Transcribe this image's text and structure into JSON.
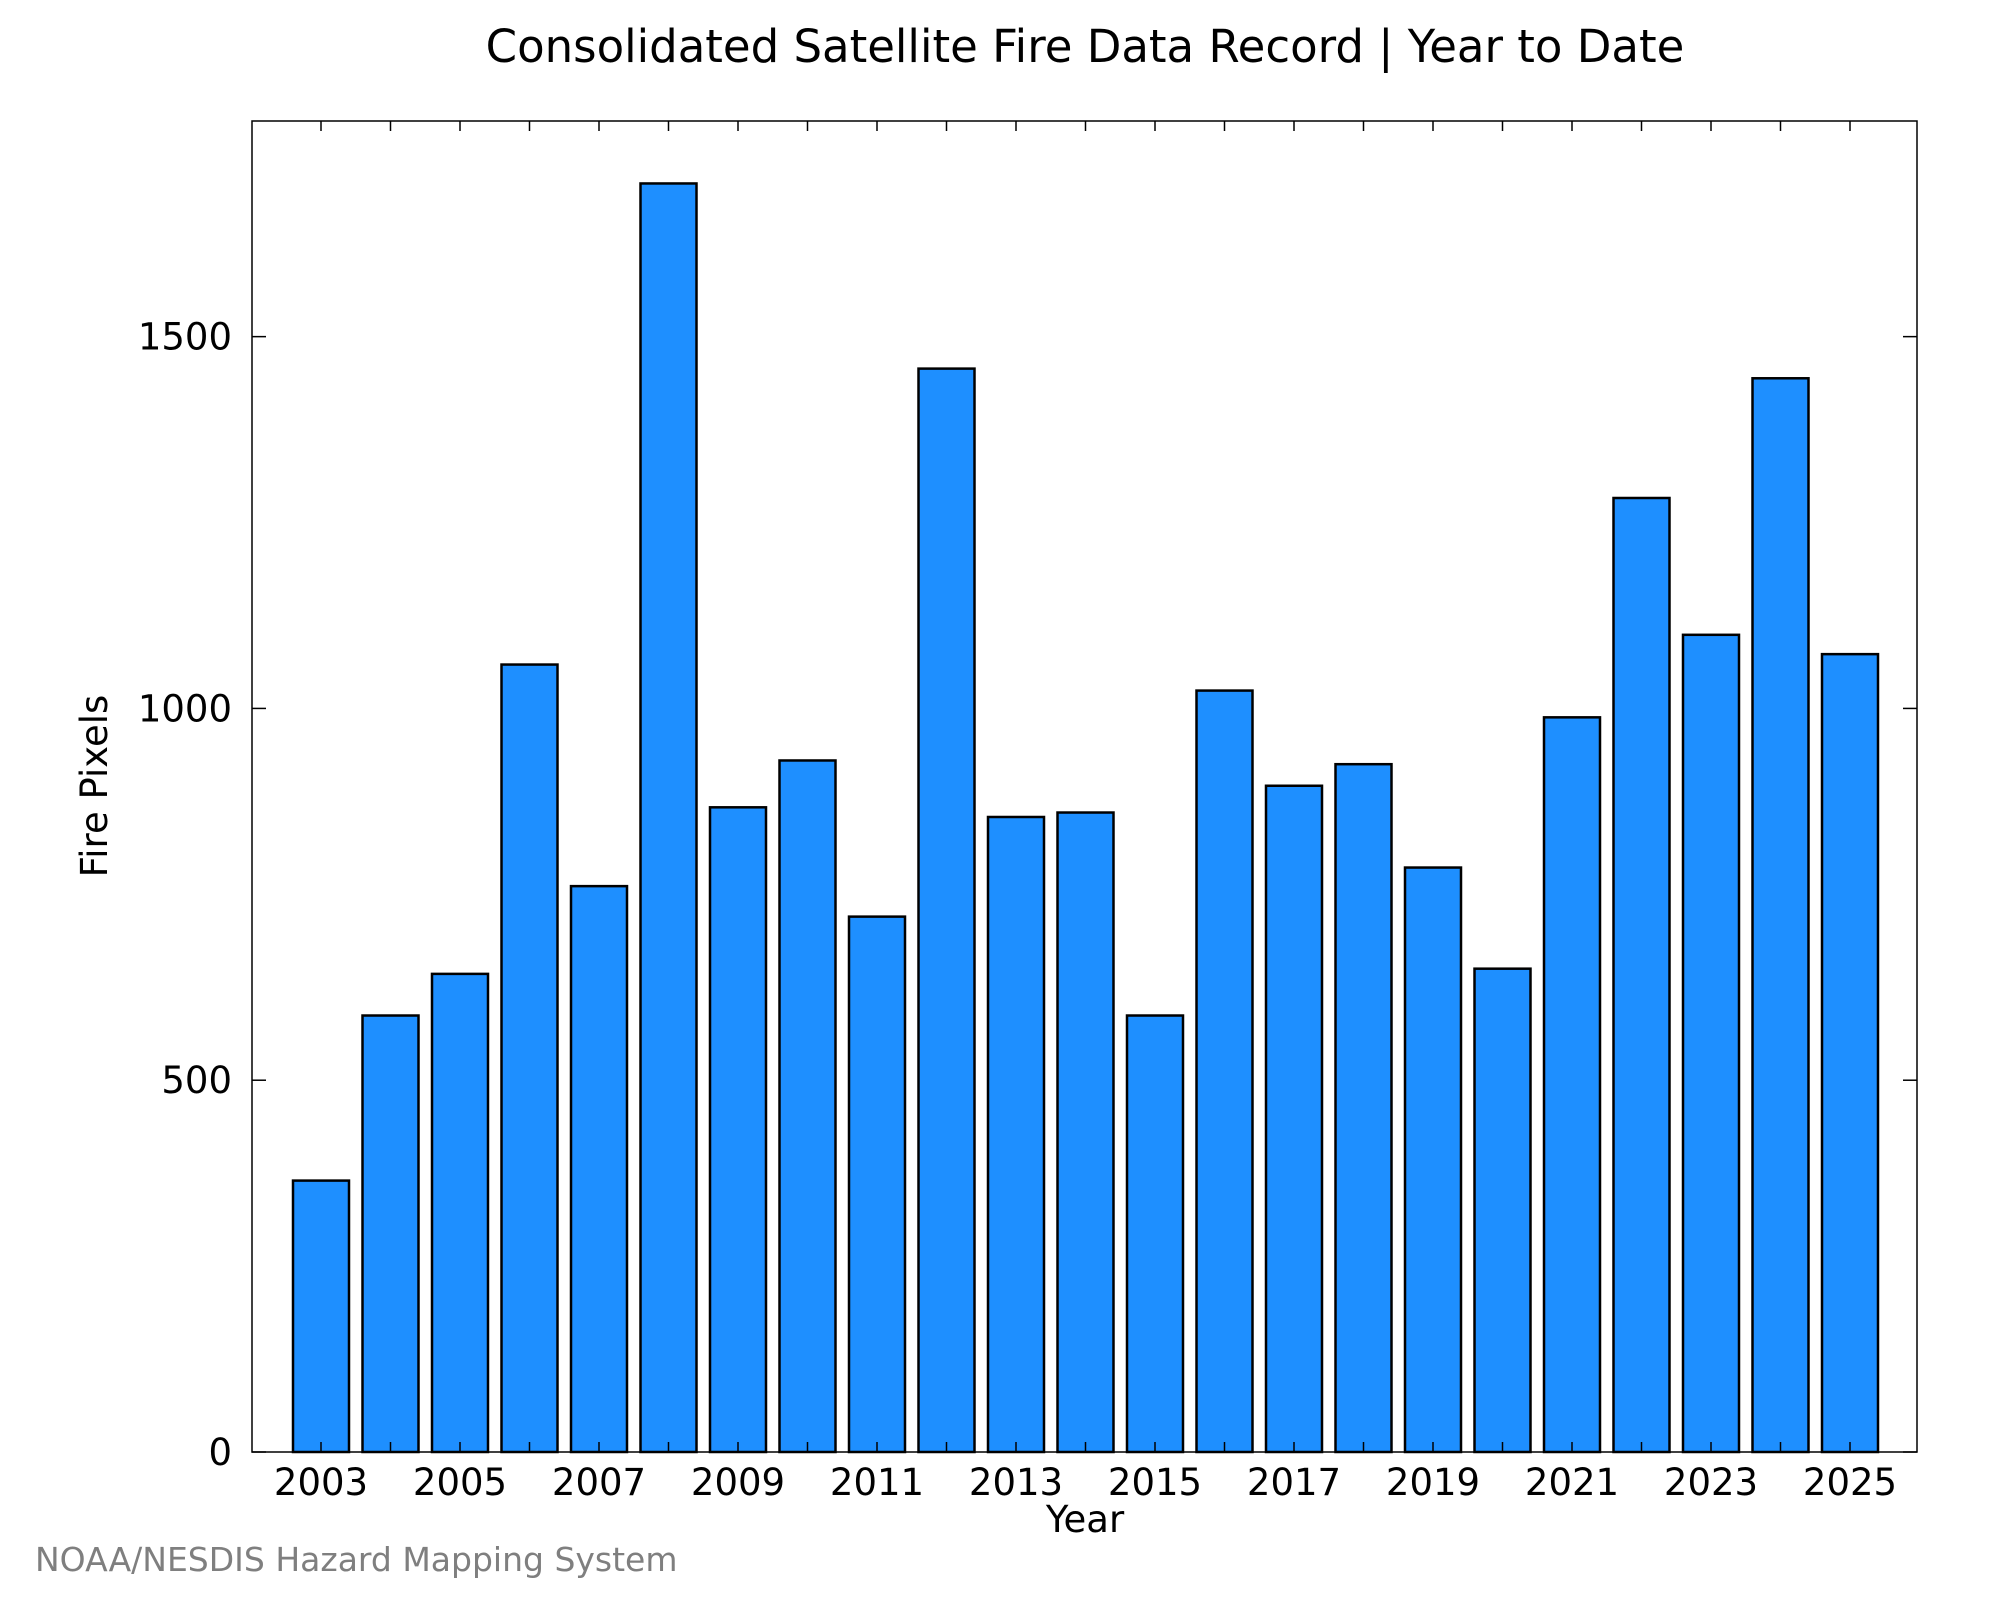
{
  "chart_data": {
    "type": "bar",
    "title": "Consolidated Satellite Fire Data Record | Year to Date",
    "xlabel": "Year",
    "ylabel": "Fire Pixels",
    "categories": [
      "2003",
      "2004",
      "2005",
      "2006",
      "2007",
      "2008",
      "2009",
      "2010",
      "2011",
      "2012",
      "2013",
      "2014",
      "2015",
      "2016",
      "2017",
      "2018",
      "2019",
      "2020",
      "2021",
      "2022",
      "2023",
      "2024",
      "2025"
    ],
    "values": [
      365,
      587,
      643,
      1059,
      761,
      1706,
      867,
      930,
      720,
      1457,
      854,
      860,
      587,
      1024,
      896,
      925,
      786,
      650,
      988,
      1283,
      1099,
      1444,
      1073
    ],
    "x_tick_labels": [
      "2003",
      "2005",
      "2007",
      "2009",
      "2011",
      "2013",
      "2015",
      "2017",
      "2019",
      "2021",
      "2023",
      "2025"
    ],
    "y_ticks": [
      "0",
      "500",
      "1000",
      "1500"
    ],
    "ylim": [
      0,
      1790
    ],
    "grid": false,
    "bar_color": "#1e8fff",
    "bar_edge_color": "#000000"
  },
  "footer": {
    "credit": "NOAA/NESDIS Hazard Mapping System"
  }
}
